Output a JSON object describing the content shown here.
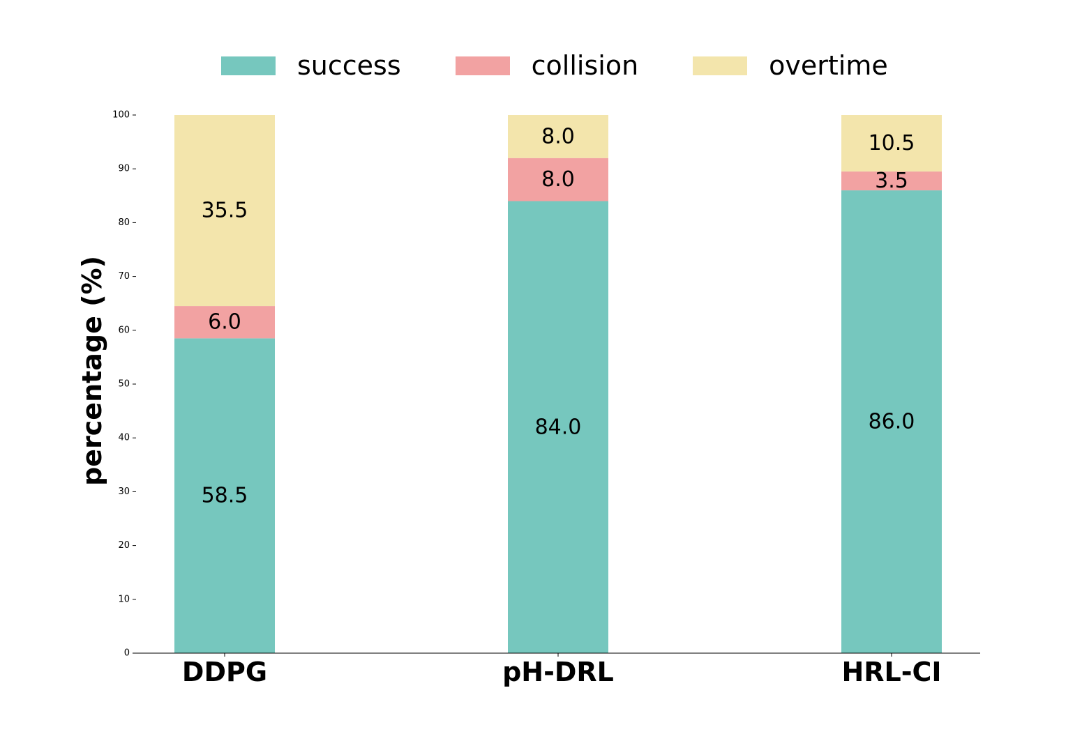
{
  "chart_data": {
    "type": "bar",
    "stacked": true,
    "categories": [
      "DDPG",
      "pH-DRL",
      "HRL-CI"
    ],
    "series": [
      {
        "name": "success",
        "color": "#76c7be",
        "values": [
          58.5,
          84.0,
          86.0
        ],
        "labels": [
          "58.5",
          "84.0",
          "86.0"
        ]
      },
      {
        "name": "collision",
        "color": "#f2a2a2",
        "values": [
          6.0,
          8.0,
          3.5
        ],
        "labels": [
          "6.0",
          "8.0",
          "3.5"
        ]
      },
      {
        "name": "overtime",
        "color": "#f3e5ac",
        "values": [
          35.5,
          8.0,
          10.5
        ],
        "labels": [
          "35.5",
          "8.0",
          "10.5"
        ]
      }
    ],
    "ylabel": "percentage (%)",
    "xlabel": "",
    "ylim": [
      0,
      100
    ],
    "yticks": [
      "0",
      "10",
      "20",
      "30",
      "40",
      "50",
      "60",
      "70",
      "80",
      "90",
      "100"
    ],
    "grid": false,
    "legend_position": "top"
  }
}
